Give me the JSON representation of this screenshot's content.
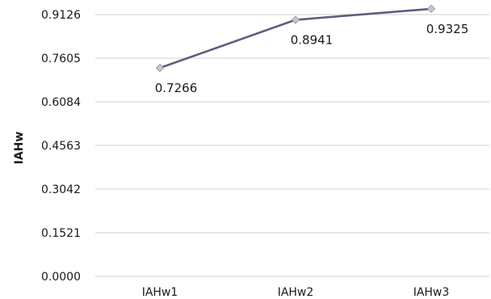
{
  "chart_data": {
    "type": "line",
    "title": "",
    "xlabel": "",
    "ylabel": "IAHw",
    "categories": [
      "IAHw1",
      "IAHw2",
      "IAHw3"
    ],
    "series": [
      {
        "values": [
          0.7266,
          0.8941,
          0.9325
        ],
        "color": "#5e5e80"
      }
    ],
    "data_labels": [
      "0.7266",
      "0.8941",
      "0.9325"
    ],
    "y_ticks": [
      0.0,
      0.1521,
      0.3042,
      0.4563,
      0.6084,
      0.7605,
      0.9126
    ],
    "y_tick_labels": [
      "0.0000",
      "0.1521",
      "0.3042",
      "0.4563",
      "0.6084",
      "0.7605",
      "0.9126"
    ],
    "ylim": [
      0,
      0.9126
    ],
    "grid": true,
    "legend": "none",
    "marker_color": "#c9c9c9"
  }
}
